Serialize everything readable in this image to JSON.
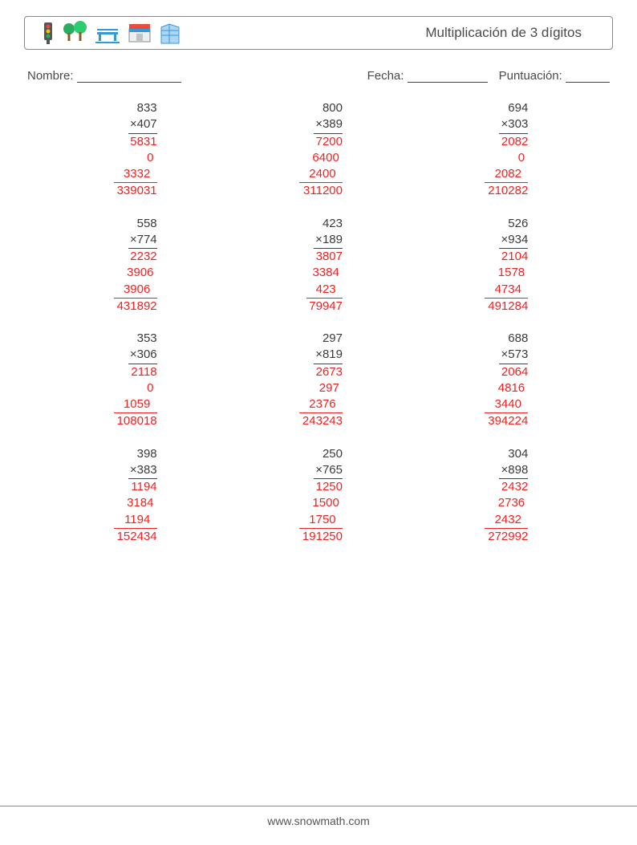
{
  "title": "Multiplicación de 3 dígitos",
  "meta": {
    "name_label": "Nombre:",
    "date_label": "Fecha:",
    "score_label": "Puntuación:",
    "name_blank_width": 130,
    "date_blank_width": 100,
    "score_blank_width": 55
  },
  "footer": "www.snowmath.com",
  "text_color": "#3a3a3a",
  "answer_color": "#e22222",
  "font_size_body": 15,
  "problems": [
    {
      "a": 833,
      "b": 407,
      "partials": [
        5831,
        0,
        3332
      ],
      "result": 339031
    },
    {
      "a": 800,
      "b": 389,
      "partials": [
        7200,
        6400,
        2400
      ],
      "result": 311200
    },
    {
      "a": 694,
      "b": 303,
      "partials": [
        2082,
        0,
        2082
      ],
      "result": 210282
    },
    {
      "a": 558,
      "b": 774,
      "partials": [
        2232,
        3906,
        3906
      ],
      "result": 431892
    },
    {
      "a": 423,
      "b": 189,
      "partials": [
        3807,
        3384,
        423
      ],
      "result": 79947
    },
    {
      "a": 526,
      "b": 934,
      "partials": [
        2104,
        1578,
        4734
      ],
      "result": 491284
    },
    {
      "a": 353,
      "b": 306,
      "partials": [
        2118,
        0,
        1059
      ],
      "result": 108018
    },
    {
      "a": 297,
      "b": 819,
      "partials": [
        2673,
        297,
        2376
      ],
      "result": 243243
    },
    {
      "a": 688,
      "b": 573,
      "partials": [
        2064,
        4816,
        3440
      ],
      "result": 394224
    },
    {
      "a": 398,
      "b": 383,
      "partials": [
        1194,
        3184,
        1194
      ],
      "result": 152434
    },
    {
      "a": 250,
      "b": 765,
      "partials": [
        1250,
        1500,
        1750
      ],
      "result": 191250
    },
    {
      "a": 304,
      "b": 898,
      "partials": [
        2432,
        2736,
        2432
      ],
      "result": 272992
    }
  ],
  "icons": [
    {
      "name": "traffic-light",
      "colors": [
        "#e74c3c",
        "#f1c40f",
        "#27ae60"
      ]
    },
    {
      "name": "trees",
      "color": "#27ae60",
      "trunk": "#8b5a2b"
    },
    {
      "name": "bench",
      "color": "#3498db"
    },
    {
      "name": "shop",
      "roof": "#e74c3c",
      "body": "#ecf0f1",
      "awning": "#3498db"
    },
    {
      "name": "building",
      "color": "#3498db",
      "glass": "#aed6f1"
    }
  ]
}
